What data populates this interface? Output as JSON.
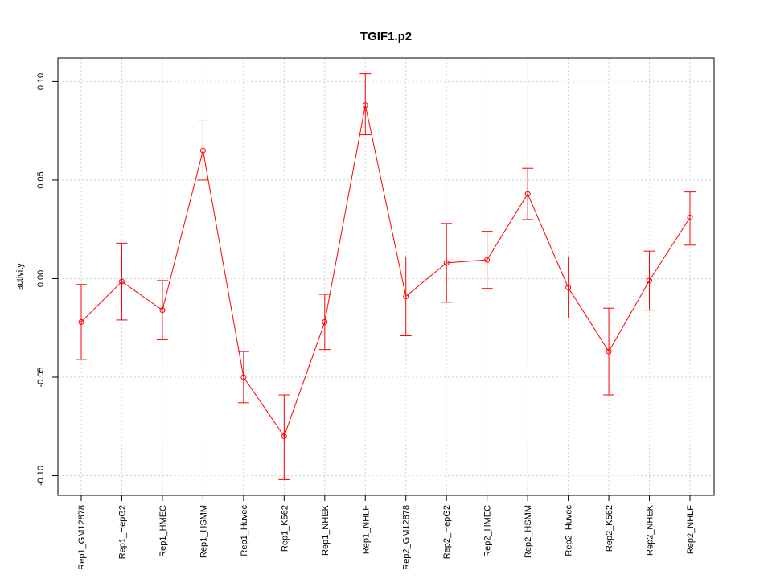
{
  "chart_data": {
    "type": "line",
    "title": "TGIF1.p2",
    "xlabel": "",
    "ylabel": "activity",
    "ylim": [
      -0.11,
      0.112
    ],
    "grid": true,
    "y_ticks": [
      -0.1,
      -0.05,
      0.0,
      0.05,
      0.1
    ],
    "y_tick_labels": [
      "-0.10",
      "-0.05",
      "0.00",
      "0.05",
      "0.10"
    ],
    "categories": [
      "Rep1_GM12878",
      "Rep1_HepG2",
      "Rep1_HMEC",
      "Rep1_HSMM",
      "Rep1_Huvec",
      "Rep1_K562",
      "Rep1_NHEK",
      "Rep1_NHLF",
      "Rep2_GM12878",
      "Rep2_HepG2",
      "Rep2_HMEC",
      "Rep2_HSMM",
      "Rep2_Huvec",
      "Rep2_K562",
      "Rep2_NHEK",
      "Rep2_NHLF"
    ],
    "series": [
      {
        "values": [
          -0.022,
          -0.0015,
          -0.016,
          0.065,
          -0.05,
          -0.08,
          -0.022,
          0.088,
          -0.009,
          0.008,
          0.0095,
          0.043,
          -0.0045,
          -0.037,
          -0.001,
          0.031
        ],
        "lower": [
          -0.041,
          -0.021,
          -0.031,
          0.05,
          -0.063,
          -0.102,
          -0.036,
          0.073,
          -0.029,
          -0.012,
          -0.005,
          0.03,
          -0.02,
          -0.059,
          -0.016,
          0.017
        ],
        "upper": [
          -0.003,
          0.018,
          -0.001,
          0.08,
          -0.037,
          -0.059,
          -0.008,
          0.104,
          0.011,
          0.028,
          0.024,
          0.056,
          0.011,
          -0.015,
          0.014,
          0.044
        ]
      }
    ],
    "color": "#ff0000"
  }
}
